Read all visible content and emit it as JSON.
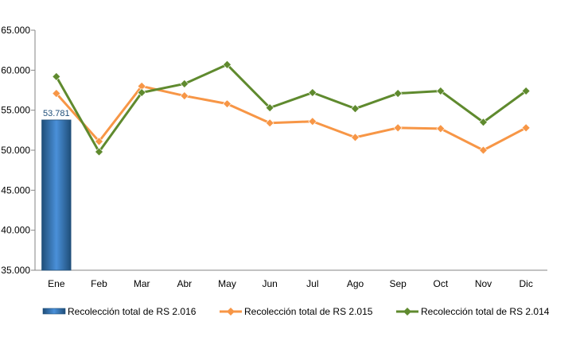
{
  "chart_data": {
    "type": "bar",
    "title": "",
    "xlabel": "",
    "ylabel": "",
    "categories": [
      "Ene",
      "Feb",
      "Mar",
      "Abr",
      "May",
      "Jun",
      "Jul",
      "Ago",
      "Sep",
      "Oct",
      "Nov",
      "Dic"
    ],
    "ylim": [
      35000,
      65000
    ],
    "yticks": [
      35000,
      40000,
      45000,
      50000,
      55000,
      60000,
      65000
    ],
    "ytick_labels": [
      "35.000",
      "40.000",
      "45.000",
      "50.000",
      "55.000",
      "60.000",
      "65.000"
    ],
    "grid": false,
    "legend_position": "bottom",
    "series": [
      {
        "name": "Recolección total de RS 2.016",
        "kind": "bar",
        "color": "#2e75b6",
        "values": [
          53781,
          null,
          null,
          null,
          null,
          null,
          null,
          null,
          null,
          null,
          null,
          null
        ],
        "data_labels": [
          "53.781",
          null,
          null,
          null,
          null,
          null,
          null,
          null,
          null,
          null,
          null,
          null
        ]
      },
      {
        "name": "Recolección total de RS 2.015",
        "kind": "line",
        "marker": "diamond",
        "color": "#f79646",
        "values": [
          57100,
          51100,
          58000,
          56800,
          55800,
          53400,
          53600,
          51600,
          52800,
          52700,
          50000,
          52800
        ]
      },
      {
        "name": "Recolección total de RS 2.014",
        "kind": "line",
        "marker": "diamond",
        "color": "#5f8a2e",
        "values": [
          59200,
          49800,
          57200,
          58300,
          60700,
          55300,
          57200,
          55200,
          57100,
          57400,
          53500,
          57400
        ]
      }
    ]
  }
}
